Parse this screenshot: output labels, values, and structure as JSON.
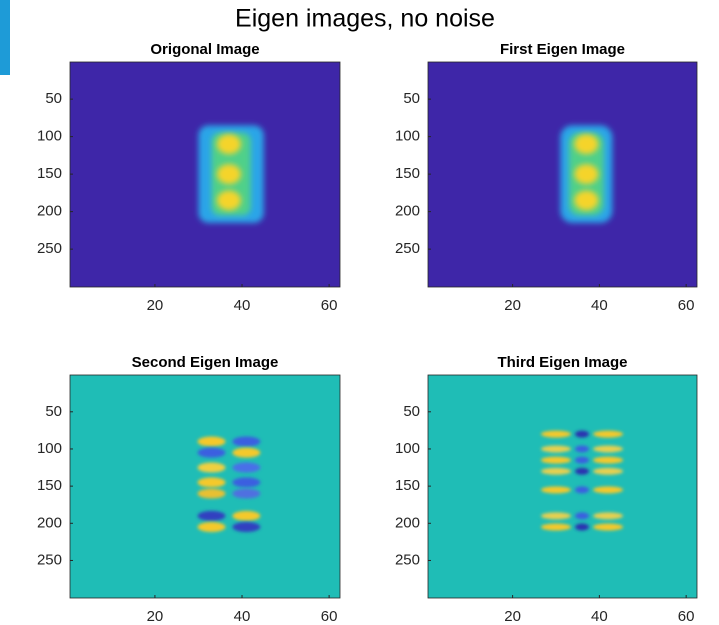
{
  "figure": {
    "title": "Eigen images, no noise"
  },
  "chart_data": [
    {
      "type": "image",
      "title": "Origonal Image",
      "xlim": [
        0.5,
        62.5
      ],
      "ylim": [
        0.5,
        300.5
      ],
      "y_reversed": true,
      "xticks": [
        20,
        40,
        60
      ],
      "yticks": [
        50,
        100,
        150,
        200,
        250
      ],
      "background": "#3e26a8"
    },
    {
      "type": "image",
      "title": "First Eigen Image",
      "xlim": [
        0.5,
        62.5
      ],
      "ylim": [
        0.5,
        300.5
      ],
      "y_reversed": true,
      "xticks": [
        20,
        40,
        60
      ],
      "yticks": [
        50,
        100,
        150,
        200,
        250
      ],
      "background": "#3e26a8"
    },
    {
      "type": "image",
      "title": "Second Eigen Image",
      "xlim": [
        0.5,
        62.5
      ],
      "ylim": [
        0.5,
        300.5
      ],
      "y_reversed": true,
      "xticks": [
        20,
        40,
        60
      ],
      "yticks": [
        50,
        100,
        150,
        200,
        250
      ],
      "background": "#1fbdb6"
    },
    {
      "type": "image",
      "title": "Third Eigen Image",
      "xlim": [
        0.5,
        62.5
      ],
      "ylim": [
        0.5,
        300.5
      ],
      "y_reversed": true,
      "xticks": [
        20,
        40,
        60
      ],
      "yticks": [
        50,
        100,
        150,
        200,
        250
      ],
      "background": "#1fbdb6"
    }
  ]
}
